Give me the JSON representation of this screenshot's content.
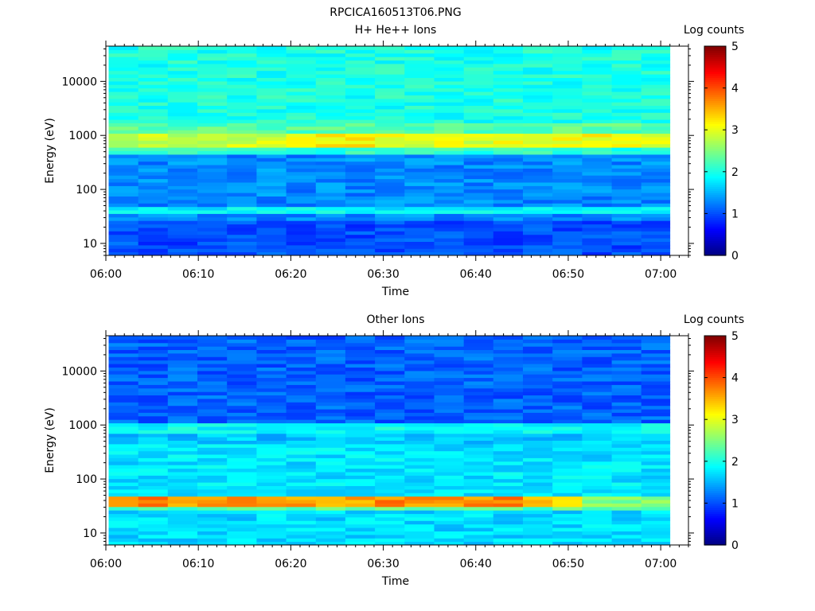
{
  "figure": {
    "title": "RPCICA160513T06.PNG"
  },
  "chart_data": [
    {
      "type": "heatmap",
      "title": "H+ He++ Ions",
      "xlabel": "Time",
      "ylabel": "Energy (eV)",
      "x_ticks": [
        "06:00",
        "06:10",
        "06:20",
        "06:30",
        "06:40",
        "06:50",
        "07:00"
      ],
      "xlim": [
        "06:00",
        "07:03"
      ],
      "data_end": "07:01",
      "y_scale": "log",
      "y_ticks": [
        "10",
        "100",
        "1000",
        "10000"
      ],
      "ylim": [
        6,
        45000
      ],
      "colorbar": {
        "label": "Log counts",
        "range": [
          0,
          5
        ],
        "ticks": [
          "0",
          "1",
          "2",
          "3",
          "4",
          "5"
        ],
        "colormap": "jet"
      },
      "time_bins": 19,
      "time_bin_minutes": 3.2,
      "bands": [
        {
          "energy_range_eV": [
            6,
            25
          ],
          "log_counts": 1.0,
          "note": "noisy low counts"
        },
        {
          "energy_range_eV": [
            25,
            38
          ],
          "log_counts": 1.3
        },
        {
          "energy_range_eV": [
            38,
            50
          ],
          "log_counts": 1.85
        },
        {
          "energy_range_eV": [
            50,
            450
          ],
          "log_counts": 1.3
        },
        {
          "energy_range_eV": [
            450,
            600
          ],
          "log_counts": 2.1
        },
        {
          "energy_range_eV": [
            600,
            1100
          ],
          "log_counts": 2.85
        },
        {
          "energy_range_eV": [
            1100,
            1800
          ],
          "log_counts": 2.3
        },
        {
          "energy_range_eV": [
            1800,
            45000
          ],
          "log_counts": 2.0
        }
      ],
      "peak_band_by_time_bin": [
        2.8,
        2.8,
        2.8,
        2.9,
        2.9,
        2.9,
        3.2,
        3.2,
        3.2,
        3.0,
        3.0,
        3.0,
        2.9,
        3.0,
        3.1,
        3.1,
        3.1,
        3.2,
        2.9
      ]
    },
    {
      "type": "heatmap",
      "title": "Other Ions",
      "xlabel": "Time",
      "ylabel": "Energy (eV)",
      "x_ticks": [
        "06:00",
        "06:10",
        "06:20",
        "06:30",
        "06:40",
        "06:50",
        "07:00"
      ],
      "xlim": [
        "06:00",
        "07:03"
      ],
      "data_end": "07:01",
      "y_scale": "log",
      "y_ticks": [
        "10",
        "100",
        "1000",
        "10000"
      ],
      "ylim": [
        6,
        45000
      ],
      "colorbar": {
        "label": "Log counts",
        "range": [
          0,
          5
        ],
        "ticks": [
          "0",
          "1",
          "2",
          "3",
          "4",
          "5"
        ],
        "colormap": "jet"
      },
      "time_bins": 19,
      "time_bin_minutes": 3.2,
      "bands": [
        {
          "energy_range_eV": [
            6,
            25
          ],
          "log_counts": 1.7
        },
        {
          "energy_range_eV": [
            25,
            30
          ],
          "log_counts": 2.3
        },
        {
          "energy_range_eV": [
            30,
            50
          ],
          "log_counts": 3.6
        },
        {
          "energy_range_eV": [
            50,
            450
          ],
          "log_counts": 1.75
        },
        {
          "energy_range_eV": [
            450,
            650
          ],
          "log_counts": 1.6
        },
        {
          "energy_range_eV": [
            650,
            1100
          ],
          "log_counts": 1.9
        },
        {
          "energy_range_eV": [
            1100,
            45000
          ],
          "log_counts": 1.1
        }
      ],
      "peak_band_by_time_bin": [
        3.8,
        3.8,
        3.6,
        3.7,
        3.7,
        3.6,
        3.6,
        3.6,
        3.6,
        3.7,
        3.7,
        3.6,
        3.7,
        3.8,
        3.4,
        3.1,
        2.6,
        2.5,
        2.5
      ]
    }
  ]
}
